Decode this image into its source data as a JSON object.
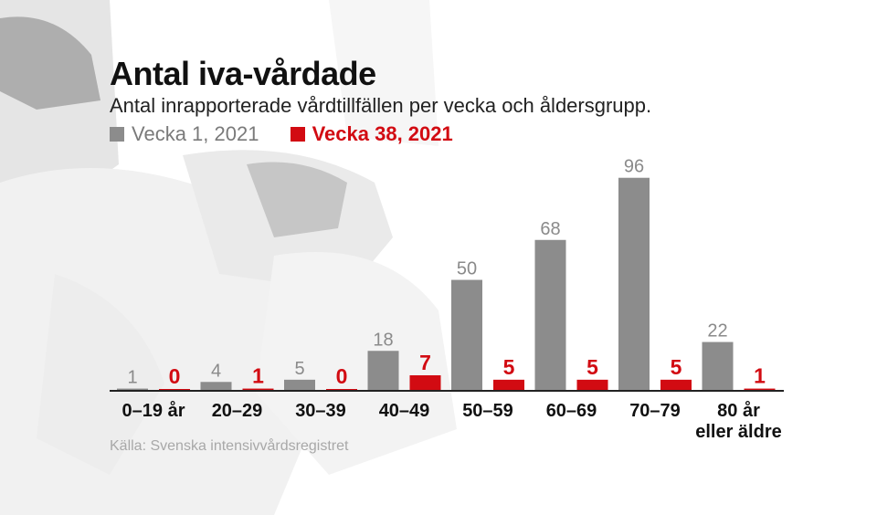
{
  "header": {
    "title": "Antal iva-vårdade",
    "subtitle": "Antal inrapporterade vårdtillfällen per vecka och åldersgrupp."
  },
  "source": "Källa: Svenska intensivvårdsregistret",
  "colors": {
    "gray": "#8c8c8c",
    "red": "#d20b12"
  },
  "chart_data": {
    "type": "bar",
    "categories": [
      [
        "0–19 år"
      ],
      [
        "20–29"
      ],
      [
        "30–39"
      ],
      [
        "40–49"
      ],
      [
        "50–59"
      ],
      [
        "60–69"
      ],
      [
        "70–79"
      ],
      [
        "80 år",
        "eller äldre"
      ]
    ],
    "series": [
      {
        "name": "Vecka 1, 2021",
        "color": "#8c8c8c",
        "values": [
          1,
          4,
          5,
          18,
          50,
          68,
          96,
          22
        ]
      },
      {
        "name": "Vecka 38, 2021",
        "color": "#d20b12",
        "values": [
          0,
          1,
          0,
          7,
          5,
          5,
          5,
          1
        ]
      }
    ],
    "ylim": [
      0,
      100
    ],
    "legend": "top-left",
    "grid": false
  }
}
